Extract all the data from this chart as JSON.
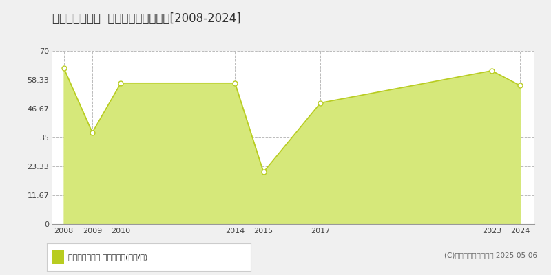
{
  "title": "羽曳野市学園前  マンション価格推移[2008-2024]",
  "years": [
    2008,
    2009,
    2010,
    2014,
    2015,
    2017,
    2023,
    2024
  ],
  "values": [
    63.0,
    37.0,
    57.0,
    57.0,
    21.0,
    49.0,
    62.0,
    56.0
  ],
  "line_color": "#b8cc20",
  "fill_color": "#d6e87a",
  "fill_alpha": 1.0,
  "marker_facecolor": "#ffffff",
  "marker_edgecolor": "#b8cc20",
  "marker_size": 5,
  "ylim": [
    0,
    70
  ],
  "yticks": [
    0,
    11.67,
    23.33,
    35,
    46.67,
    58.33,
    70
  ],
  "ytick_labels": [
    "0",
    "11.67",
    "23.33",
    "35",
    "46.67",
    "58.33",
    "70"
  ],
  "background_color": "#f0f0f0",
  "plot_bg_color": "#ffffff",
  "grid_color": "#bbbbbb",
  "title_fontsize": 12,
  "tick_fontsize": 8,
  "legend_label": "マンション価格 平均坪単価(万円/坪)",
  "copyright_text": "(C)土地価格ドットコム 2025-05-06"
}
